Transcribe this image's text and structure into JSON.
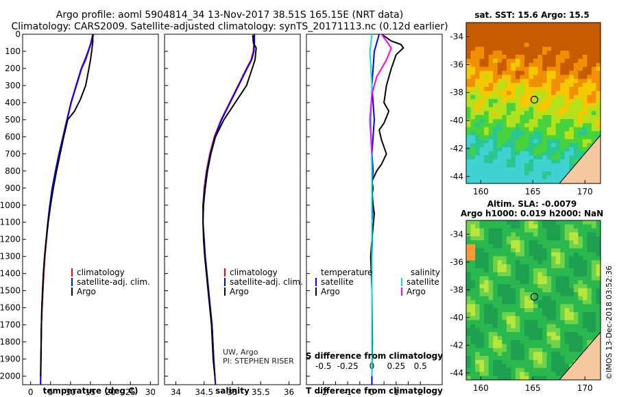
{
  "header": {
    "line1": "Argo profile: aoml 5904814_34 13-Nov-2017 38.51S 165.15E (NRT data)",
    "line2": "Climatology: CARS2009. Satellite-adjusted climatology: synTS_20171113.nc (0.12d earlier)"
  },
  "colors": {
    "climatology": "#ff0000",
    "satellite": "#0000ff",
    "argo": "#000000",
    "salinity_satellite": "#00e0e0",
    "salinity_argo": "#ff00ff"
  },
  "chart_data": [
    {
      "type": "line",
      "name": "temperature",
      "xlabel": "temperature (deg C)",
      "ylabel": "",
      "xlim": [
        -2,
        32
      ],
      "ylim": [
        2050,
        0
      ],
      "xticks": [
        0,
        5,
        10,
        15,
        20,
        25,
        30
      ],
      "yticks": [
        0,
        100,
        200,
        300,
        400,
        500,
        600,
        700,
        800,
        900,
        1000,
        1100,
        1200,
        1300,
        1400,
        1500,
        1600,
        1700,
        1800,
        1900,
        2000
      ],
      "legend": [
        "climatology",
        "satellite-adj. clim.",
        "Argo"
      ],
      "series": [
        {
          "name": "climatology",
          "color": "#ff0000",
          "x": [
            15.8,
            15.2,
            14.5,
            13.8,
            12.8,
            11.5,
            10.2,
            9.2,
            8.2,
            7.2,
            6.3,
            5.5,
            4.9,
            4.4,
            4.0,
            3.6,
            3.3,
            3.1,
            2.9,
            2.7,
            2.6,
            2.5
          ],
          "y": [
            0,
            50,
            100,
            150,
            200,
            300,
            400,
            500,
            600,
            700,
            800,
            900,
            1000,
            1100,
            1200,
            1300,
            1400,
            1500,
            1600,
            1700,
            1900,
            2050
          ]
        },
        {
          "name": "satellite-adj. clim.",
          "color": "#0000ff",
          "x": [
            15.6,
            15.1,
            14.4,
            13.6,
            12.7,
            11.4,
            10.1,
            9.1,
            8.1,
            7.1,
            6.2,
            5.4,
            4.8,
            4.3,
            3.9,
            3.5,
            3.2,
            3.0,
            2.8,
            2.7,
            2.6,
            2.5
          ],
          "y": [
            0,
            50,
            100,
            150,
            200,
            300,
            400,
            500,
            600,
            700,
            800,
            900,
            1000,
            1100,
            1200,
            1300,
            1400,
            1500,
            1600,
            1700,
            1900,
            2050
          ]
        },
        {
          "name": "Argo",
          "color": "#000000",
          "x": [
            15.5,
            15.6,
            15.3,
            15.0,
            14.6,
            13.8,
            12.5,
            11.0,
            9.3,
            8.3,
            7.4,
            6.5,
            5.7,
            5.0,
            4.4,
            3.9,
            3.5,
            3.2,
            3.0,
            2.8,
            2.7,
            2.6,
            2.5
          ],
          "y": [
            5,
            40,
            100,
            150,
            200,
            300,
            380,
            450,
            500,
            600,
            700,
            800,
            900,
            1000,
            1100,
            1200,
            1300,
            1400,
            1500,
            1600,
            1700,
            1850,
            2000
          ]
        }
      ]
    },
    {
      "type": "line",
      "name": "salinity",
      "xlabel": "salinity",
      "ylabel": "",
      "xlim": [
        33.8,
        36.2
      ],
      "ylim": [
        2050,
        0
      ],
      "xticks": [
        34,
        34.5,
        35,
        35.5,
        36
      ],
      "legend": [
        "climatology",
        "satellite-adj. clim.",
        "Argo"
      ],
      "series": [
        {
          "name": "climatology",
          "color": "#ff0000",
          "x": [
            35.38,
            35.38,
            35.37,
            35.33,
            35.25,
            35.1,
            34.95,
            34.8,
            34.68,
            34.6,
            34.54,
            34.5,
            34.48,
            34.48,
            34.5,
            34.52,
            34.55,
            34.58,
            34.61,
            34.64,
            34.67,
            34.7
          ],
          "y": [
            0,
            50,
            100,
            150,
            200,
            300,
            400,
            500,
            600,
            700,
            800,
            900,
            1000,
            1100,
            1200,
            1300,
            1400,
            1500,
            1600,
            1700,
            1900,
            2050
          ]
        },
        {
          "name": "satellite-adj. clim.",
          "color": "#0000ff",
          "x": [
            35.39,
            35.39,
            35.38,
            35.34,
            35.26,
            35.11,
            34.96,
            34.81,
            34.69,
            34.61,
            34.55,
            34.51,
            34.48,
            34.48,
            34.5,
            34.52,
            34.55,
            34.58,
            34.61,
            34.64,
            34.67,
            34.7
          ],
          "y": [
            0,
            50,
            100,
            150,
            200,
            300,
            400,
            500,
            600,
            700,
            800,
            900,
            1000,
            1100,
            1200,
            1300,
            1400,
            1500,
            1600,
            1700,
            1900,
            2050
          ]
        },
        {
          "name": "Argo",
          "color": "#000000",
          "x": [
            35.36,
            35.37,
            35.42,
            35.4,
            35.35,
            35.25,
            35.05,
            34.85,
            34.7,
            34.62,
            34.56,
            34.52,
            34.49,
            34.48,
            34.49,
            34.51,
            34.54,
            34.57,
            34.6,
            34.63,
            34.66,
            34.69
          ],
          "y": [
            5,
            50,
            80,
            150,
            200,
            300,
            400,
            500,
            600,
            700,
            800,
            900,
            1000,
            1100,
            1200,
            1300,
            1400,
            1500,
            1600,
            1700,
            1900,
            2000
          ]
        }
      ]
    },
    {
      "type": "line",
      "name": "difference",
      "xlabel": "T difference from climatology",
      "xlabel2": "S difference from climatology",
      "ylabel": "",
      "xlim": [
        -2.7,
        2.9
      ],
      "ylim": [
        2050,
        0
      ],
      "xticks": [
        -2,
        -1.5,
        -1,
        -0.5,
        0,
        0.5,
        1,
        1.5,
        2
      ],
      "xticklabels": [
        "-2",
        "",
        "-1",
        "",
        "0",
        "",
        "1",
        "",
        "2"
      ],
      "s_ticks": [
        -0.5,
        -0.25,
        0,
        0.25,
        0.5
      ],
      "s_ticklabels": [
        "-0.5",
        "-0.25",
        "0",
        "0.25",
        "0.5"
      ],
      "legend_left_title": "temperature",
      "legend_right_title": "salinity",
      "legend_left": [
        "satellite",
        "Argo"
      ],
      "legend_right": [
        "satellite",
        "Argo"
      ],
      "series": [
        {
          "name": "temperature satellite",
          "color": "#0000ff",
          "x": [
            0.3,
            0.1,
            0.05,
            0.0,
            0.05,
            0.1,
            0.05,
            0.0,
            0.05,
            0.0,
            0.05,
            0.0,
            0.02,
            0.0,
            0.0,
            0.0,
            0.0,
            0.0,
            0.0
          ],
          "y": [
            0,
            100,
            200,
            300,
            400,
            500,
            600,
            700,
            800,
            900,
            1000,
            1100,
            1200,
            1300,
            1400,
            1600,
            1800,
            1900,
            2050
          ]
        },
        {
          "name": "temperature Argo",
          "color": "#000000",
          "x": [
            0.4,
            0.8,
            1.2,
            1.3,
            1.0,
            0.8,
            0.6,
            0.5,
            0.7,
            0.5,
            0.3,
            0.4,
            0.6,
            0.4,
            0.2,
            0.0,
            0.05,
            0.0,
            0.1,
            0.0,
            -0.05,
            0.0,
            0.02,
            0.0
          ],
          "y": [
            0,
            40,
            60,
            80,
            120,
            200,
            300,
            400,
            450,
            520,
            560,
            620,
            700,
            760,
            800,
            860,
            900,
            950,
            1050,
            1200,
            1300,
            1500,
            1800,
            2000
          ]
        },
        {
          "name": "salinity satellite",
          "color": "#00e0e0",
          "x": [
            0.0,
            -0.02,
            0.0,
            -0.01,
            0.0,
            0.0,
            0.0,
            0.0
          ],
          "y": [
            0,
            100,
            300,
            500,
            800,
            1200,
            1600,
            2000
          ]
        },
        {
          "name": "salinity Argo",
          "color": "#ff00ff",
          "x": [
            0.1,
            0.2,
            0.15,
            0.05,
            0.0,
            -0.02,
            0.0
          ],
          "y": [
            0,
            80,
            150,
            250,
            350,
            500,
            700
          ]
        }
      ]
    },
    {
      "type": "heatmap",
      "name": "sst_map",
      "title": "sat. SST: 15.6 Argo: 15.5",
      "xticks": [
        160,
        165,
        170
      ],
      "yticks": [
        -34,
        -36,
        -38,
        -40,
        -42,
        -44
      ],
      "xlim": [
        158.6,
        171.5
      ],
      "ylim": [
        -44.5,
        -33
      ],
      "marker": [
        165.15,
        -38.51
      ]
    },
    {
      "type": "heatmap",
      "name": "sla_map",
      "title": "Altim. SLA: -0.0079",
      "subtitle": "Argo h1000: 0.019 h2000: NaN",
      "xticks": [
        160,
        165,
        170
      ],
      "yticks": [
        -34,
        -36,
        -38,
        -40,
        -42,
        -44
      ],
      "xlim": [
        158.6,
        171.5
      ],
      "ylim": [
        -44.5,
        -33
      ],
      "marker": [
        165.15,
        -38.51
      ]
    }
  ],
  "footer": {
    "credit1": "UW, Argo",
    "credit2": "PI: STEPHEN RISER",
    "stamp": "©IMOS 13-Dec-2018 03:52:36"
  }
}
